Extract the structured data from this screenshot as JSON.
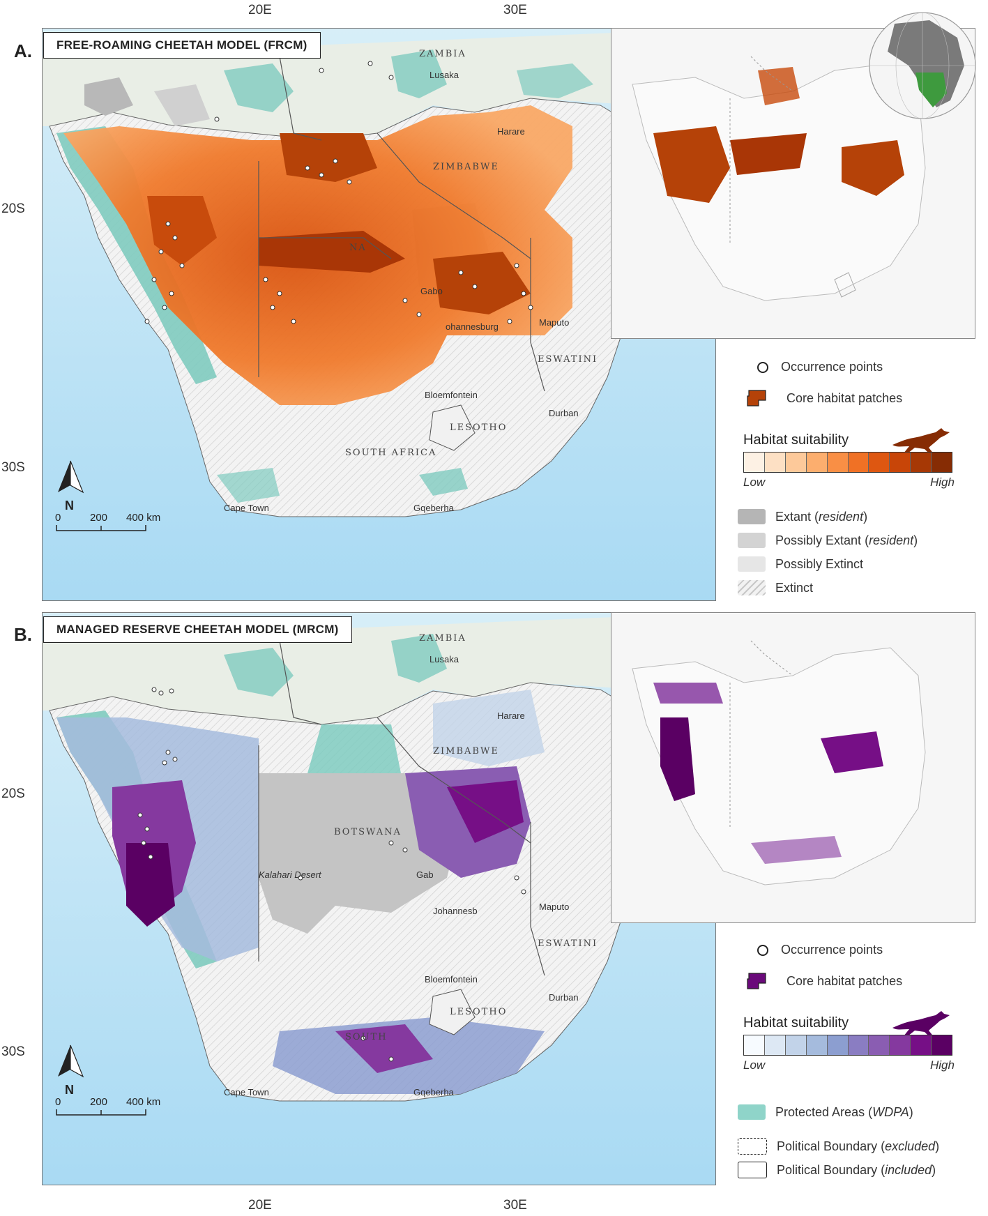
{
  "axes": {
    "top_ticks": [
      "20E",
      "30E"
    ],
    "bottom_ticks": [
      "20E",
      "30E"
    ],
    "left_ticks_a": [
      "20S",
      "30S"
    ],
    "left_ticks_b": [
      "20S",
      "30S"
    ]
  },
  "panels": [
    {
      "letter": "A.",
      "title": "FREE-ROAMING CHEETAH MODEL (FRCM)",
      "palette": "orange",
      "place_labels": {
        "zambia": "ZAMBIA",
        "lusaka": "Lusaka",
        "harare": "Harare",
        "zimbabwe": "ZIMBABWE",
        "botswana": "NA",
        "gaborone": "Gabo",
        "johannesburg": "ohannesburg",
        "maputo": "Maputo",
        "eswatini": "ESWATINI",
        "bloemfontein": "Bloemfontein",
        "durban": "Durban",
        "lesotho": "LESOTHO",
        "south_africa": "SOUTH AFRICA",
        "cape_town": "Cape Town",
        "gqeberha": "Gqeberha"
      }
    },
    {
      "letter": "B.",
      "title": "MANAGED RESERVE CHEETAH MODEL (MRCM)",
      "palette": "purple",
      "place_labels": {
        "zambia": "ZAMBIA",
        "lusaka": "Lusaka",
        "harare": "Harare",
        "zimbabwe": "ZIMBABWE",
        "botswana": "BOTSWANA",
        "kalahari": "Kalahari Desert",
        "gaborone": "Gab",
        "johannesburg": "Johannesb",
        "maputo": "Maputo",
        "eswatini": "ESWATINI",
        "bloemfontein": "Bloemfontein",
        "durban": "Durban",
        "lesotho": "LESOTHO",
        "south_africa": "SOUTH",
        "cape_town": "Cape Town",
        "gqeberha": "Gqeberha"
      }
    }
  ],
  "north_arrow": "N",
  "scalebar": {
    "ticks": [
      "0",
      "200",
      "400 km"
    ]
  },
  "legend_a": {
    "occurrence": "Occurrence points",
    "core": "Core habitat patches",
    "hs_title": "Habitat suitability",
    "low": "Low",
    "high": "High",
    "ramp_colors": [
      "#fdf1e4",
      "#fde0c4",
      "#fdc99a",
      "#fcae6e",
      "#f98f45",
      "#f07125",
      "#de5711",
      "#c84508",
      "#a63805",
      "#862c04"
    ],
    "range_items": [
      {
        "label": "Extant",
        "note": "resident",
        "color": "#b5b5b5",
        "icon": "solid"
      },
      {
        "label": "Possibly Extant",
        "note": "resident",
        "color": "#d3d3d3",
        "icon": "solid"
      },
      {
        "label": "Possibly Extinct",
        "note": "",
        "color": "#e6e6e6",
        "icon": "solid"
      },
      {
        "label": "Extinct",
        "note": "",
        "color": "#eeeeee",
        "icon": "hatch"
      }
    ]
  },
  "legend_b": {
    "occurrence": "Occurrence points",
    "core": "Core habitat patches",
    "hs_title": "Habitat suitability",
    "low": "Low",
    "high": "High",
    "ramp_colors": [
      "#f7fbff",
      "#dde8f4",
      "#c2d3e9",
      "#a5bbdd",
      "#8c9ed0",
      "#8a7dc2",
      "#8a5db2",
      "#85399f",
      "#760f86",
      "#5a0063"
    ],
    "pa_label": "Protected Areas",
    "pa_note": "WDPA",
    "pa_color": "#8fd4c9",
    "boundary_excluded": "Political Boundary",
    "boundary_excluded_note": "excluded",
    "boundary_included": "Political Boundary",
    "boundary_included_note": "included"
  },
  "colors": {
    "ocean": "#bfe3f5",
    "land": "#f1f1f1",
    "protected": "#7fcbbf",
    "orange_core": "#b54208",
    "purple_core": "#6a0a7a"
  }
}
